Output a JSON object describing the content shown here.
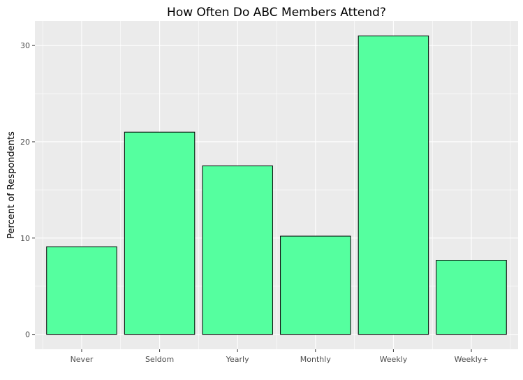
{
  "chart_data": {
    "type": "bar",
    "title": "How Often Do ABC Members Attend?",
    "xlabel": "",
    "ylabel": "Percent of Respondents",
    "categories": [
      "Never",
      "Seldom",
      "Yearly",
      "Monthly",
      "Weekly",
      "Weekly+"
    ],
    "values": [
      9.1,
      21.0,
      17.5,
      10.2,
      31.0,
      7.7
    ],
    "ylim": [
      -1.55,
      32.55
    ],
    "yticks": [
      0,
      10,
      20,
      30
    ],
    "ytick_labels": [
      "0",
      "10",
      "20",
      "30"
    ],
    "grid": true,
    "colors": {
      "bar_fill": "#55FF9F",
      "bar_stroke": "#000000",
      "panel_background": "#EBEBEB",
      "grid_line": "#FFFFFF"
    }
  }
}
